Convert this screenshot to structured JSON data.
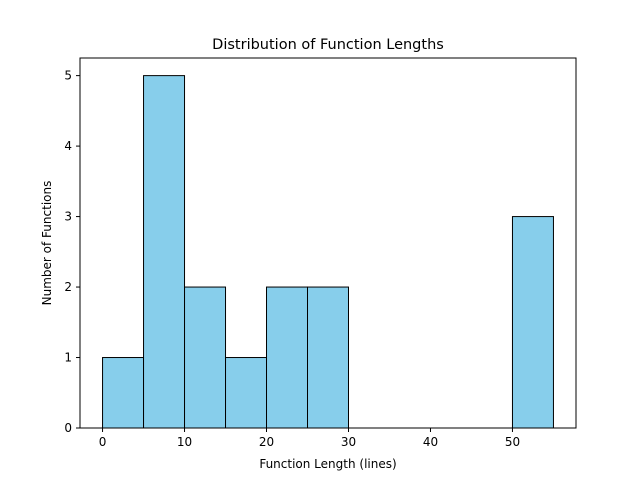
{
  "chart_data": {
    "type": "bar",
    "subtype": "histogram",
    "title": "Distribution of Function Lengths",
    "xlabel": "Function Length (lines)",
    "ylabel": "Number of Functions",
    "bins": [
      {
        "start": 0,
        "end": 5,
        "count": 1
      },
      {
        "start": 5,
        "end": 10,
        "count": 5
      },
      {
        "start": 10,
        "end": 15,
        "count": 2
      },
      {
        "start": 15,
        "end": 20,
        "count": 1
      },
      {
        "start": 20,
        "end": 25,
        "count": 2
      },
      {
        "start": 25,
        "end": 30,
        "count": 2
      },
      {
        "start": 30,
        "end": 35,
        "count": 0
      },
      {
        "start": 35,
        "end": 40,
        "count": 0
      },
      {
        "start": 40,
        "end": 45,
        "count": 0
      },
      {
        "start": 45,
        "end": 50,
        "count": 0
      },
      {
        "start": 50,
        "end": 55,
        "count": 3
      }
    ],
    "xlim": [
      -2.75,
      57.75
    ],
    "ylim": [
      0,
      5.25
    ],
    "xticks": [
      0,
      10,
      20,
      30,
      40,
      50
    ],
    "yticks": [
      0,
      1,
      2,
      3,
      4,
      5
    ],
    "bar_color": "#87CEEB",
    "edge_color": "#000000",
    "grid": false,
    "legend": "none"
  }
}
